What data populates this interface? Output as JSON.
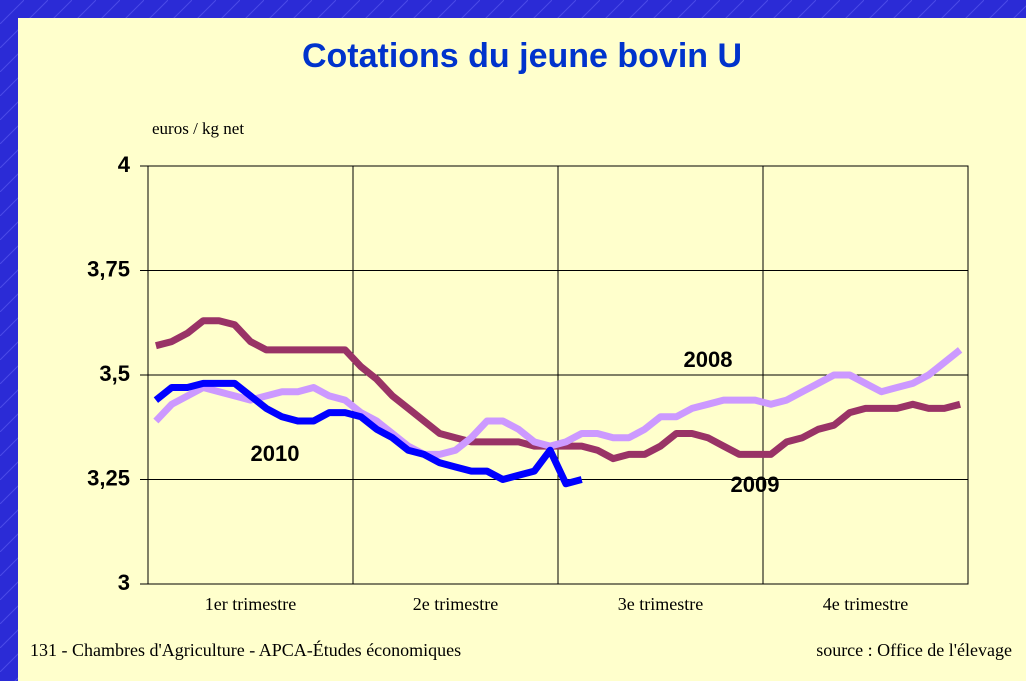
{
  "chart_data": {
    "type": "line",
    "title": "Cotations du jeune bovin U",
    "y_label": "euros / kg net",
    "footer_left": "131 - Chambres d'Agriculture - APCA-Études économiques",
    "footer_right": "source : Office de l'élevage",
    "categories": [
      null,
      null,
      null,
      null,
      null,
      null,
      "1er trimestre",
      null,
      null,
      null,
      null,
      null,
      null,
      null,
      null,
      null,
      null,
      null,
      null,
      "2e trimestre",
      null,
      null,
      null,
      null,
      null,
      null,
      null,
      null,
      null,
      null,
      null,
      null,
      "3e trimestre",
      null,
      null,
      null,
      null,
      null,
      null,
      null,
      null,
      null,
      null,
      null,
      null,
      "4e trimestre",
      null,
      null,
      null,
      null,
      null,
      null
    ],
    "ylim": [
      3,
      4
    ],
    "yticks": [
      3,
      {
        "value": 3.25,
        "label": "3,25"
      },
      {
        "value": 3.5,
        "label": "3,5"
      },
      {
        "value": 3.75,
        "label": "3,75"
      },
      4
    ],
    "grid": true,
    "series": [
      {
        "name": "2009",
        "color": "#993366",
        "values": [
          3.57,
          3.58,
          3.6,
          3.63,
          3.63,
          3.62,
          3.58,
          3.56,
          3.56,
          3.56,
          3.56,
          3.56,
          3.56,
          3.52,
          3.49,
          3.45,
          3.42,
          3.39,
          3.36,
          3.35,
          3.34,
          3.34,
          3.34,
          3.34,
          3.33,
          3.33,
          3.33,
          3.33,
          3.32,
          3.3,
          3.31,
          3.31,
          3.33,
          3.36,
          3.36,
          3.35,
          3.33,
          3.31,
          3.31,
          3.31,
          3.34,
          3.35,
          3.37,
          3.38,
          3.41,
          3.42,
          3.42,
          3.42,
          3.43,
          3.42,
          3.42,
          3.43
        ]
      },
      {
        "name": "2008",
        "color": "#cc99ff",
        "values": [
          3.39,
          3.43,
          3.45,
          3.47,
          3.46,
          3.45,
          3.44,
          3.45,
          3.46,
          3.46,
          3.47,
          3.45,
          3.44,
          3.41,
          3.39,
          3.36,
          3.33,
          3.31,
          3.31,
          3.32,
          3.35,
          3.39,
          3.39,
          3.37,
          3.34,
          3.33,
          3.34,
          3.36,
          3.36,
          3.35,
          3.35,
          3.37,
          3.4,
          3.4,
          3.42,
          3.43,
          3.44,
          3.44,
          3.44,
          3.43,
          3.44,
          3.46,
          3.48,
          3.5,
          3.5,
          3.48,
          3.46,
          3.47,
          3.48,
          3.5,
          3.53,
          3.56
        ]
      },
      {
        "name": "2010",
        "color": "#0000ff",
        "values": [
          3.44,
          3.47,
          3.47,
          3.48,
          3.48,
          3.48,
          3.45,
          3.42,
          3.4,
          3.39,
          3.39,
          3.41,
          3.41,
          3.4,
          3.37,
          3.35,
          3.32,
          3.31,
          3.29,
          3.28,
          3.27,
          3.27,
          3.25,
          3.26,
          3.27,
          3.32,
          3.24,
          3.25,
          null,
          null,
          null,
          null,
          null,
          null,
          null,
          null,
          null,
          null,
          null,
          null,
          null,
          null,
          null,
          null,
          null,
          null,
          null,
          null,
          null,
          null,
          null,
          null
        ]
      }
    ]
  }
}
